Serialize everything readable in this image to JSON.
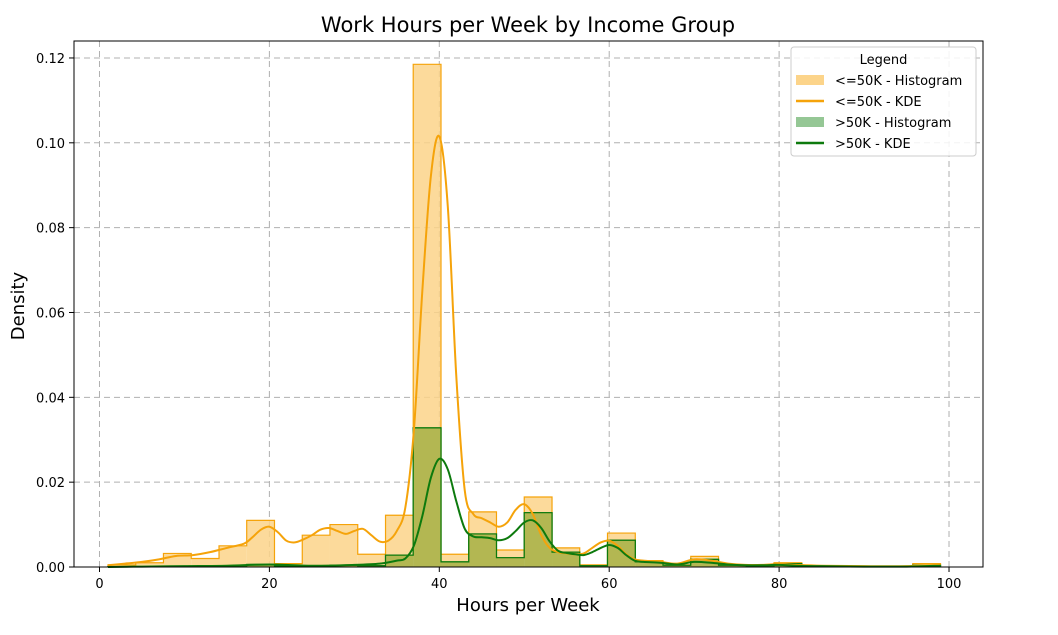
{
  "chart_data": {
    "type": "histogram+kde",
    "title": "Work Hours per Week by Income Group",
    "xlabel": "Hours per Week",
    "ylabel": "Density",
    "xlim": [
      -3,
      104
    ],
    "ylim": [
      0,
      0.124
    ],
    "xticks": [
      0,
      20,
      40,
      60,
      80,
      100
    ],
    "yticks": [
      0.0,
      0.02,
      0.04,
      0.06,
      0.08,
      0.1,
      0.12
    ],
    "ytick_labels": [
      "0.00",
      "0.02",
      "0.04",
      "0.06",
      "0.08",
      "0.10",
      "0.12"
    ],
    "grid": true,
    "bin_edges": [
      1,
      4.27,
      7.53,
      10.8,
      14.07,
      17.33,
      20.6,
      23.87,
      27.13,
      30.4,
      33.67,
      36.93,
      40.2,
      43.47,
      46.73,
      50.0,
      53.27,
      56.53,
      59.8,
      63.07,
      66.33,
      69.6,
      72.87,
      76.13,
      79.4,
      82.67,
      85.93,
      89.2,
      92.47,
      95.73,
      99.0
    ],
    "legend": {
      "title": "Legend",
      "position": "top-right",
      "entries": [
        {
          "label": "<=50K - Histogram",
          "kind": "patch",
          "color": "#fcd48a"
        },
        {
          "label": "<=50K - KDE",
          "kind": "line",
          "color": "#f5a30a"
        },
        {
          "label": ">50K - Histogram",
          "kind": "patch",
          "color": "#95c795"
        },
        {
          "label": ">50K - KDE",
          "kind": "line",
          "color": "#0d7a0d"
        }
      ]
    },
    "series": [
      {
        "name": "<=50K - Histogram",
        "kind": "histogram",
        "fill": "#fcd48a",
        "edge": "#f5a30a",
        "values": [
          0.0005,
          0.001,
          0.0032,
          0.002,
          0.005,
          0.011,
          0.0008,
          0.0075,
          0.01,
          0.003,
          0.0122,
          0.1185,
          0.003,
          0.013,
          0.004,
          0.0165,
          0.0045,
          0.0005,
          0.008,
          0.0015,
          0.0005,
          0.0025,
          0.0005,
          0.0003,
          0.001,
          0.0003,
          0.0002,
          0.0002,
          0.0002,
          0.0008
        ]
      },
      {
        "name": ">50K - Histogram",
        "kind": "histogram",
        "fill": "#95c795",
        "edge": "#0d7a0d",
        "values": [
          0.0001,
          0.0001,
          0.0002,
          0.0002,
          0.0003,
          0.0006,
          0.0002,
          0.0003,
          0.0004,
          0.0003,
          0.0028,
          0.0328,
          0.0012,
          0.0078,
          0.0022,
          0.0128,
          0.0035,
          0.0003,
          0.0063,
          0.0012,
          0.0004,
          0.0018,
          0.0004,
          0.0003,
          0.0008,
          0.0002,
          0.0001,
          0.0001,
          0.0001,
          0.0004
        ]
      },
      {
        "name": "<=50K - KDE",
        "kind": "line",
        "color": "#f5a30a",
        "x": [
          1,
          3,
          5,
          7,
          9,
          11,
          13,
          15,
          17,
          18,
          19,
          20,
          21,
          22,
          23,
          24,
          25,
          26,
          27,
          28,
          29,
          30,
          31,
          32,
          33,
          34,
          35,
          36,
          37,
          38,
          39,
          40,
          41,
          42,
          43,
          44,
          45,
          46,
          47,
          48,
          49,
          50,
          51,
          52,
          53,
          54,
          55,
          56,
          57,
          58,
          59,
          60,
          61,
          62,
          63,
          64,
          66,
          68,
          70,
          72,
          74,
          76,
          78,
          80,
          82,
          85,
          90,
          95,
          99
        ],
        "y": [
          0.0004,
          0.0008,
          0.0012,
          0.0018,
          0.0026,
          0.0028,
          0.0035,
          0.0045,
          0.0055,
          0.007,
          0.0088,
          0.0095,
          0.0082,
          0.0062,
          0.0058,
          0.0065,
          0.0075,
          0.0088,
          0.0092,
          0.0085,
          0.0078,
          0.0085,
          0.009,
          0.0075,
          0.006,
          0.0062,
          0.0085,
          0.014,
          0.032,
          0.065,
          0.092,
          0.1015,
          0.085,
          0.045,
          0.018,
          0.0125,
          0.0115,
          0.0105,
          0.0095,
          0.0105,
          0.0135,
          0.0148,
          0.0125,
          0.0075,
          0.0045,
          0.0035,
          0.0032,
          0.003,
          0.0032,
          0.0045,
          0.0058,
          0.0062,
          0.005,
          0.003,
          0.0018,
          0.0015,
          0.0012,
          0.0008,
          0.0018,
          0.0015,
          0.0008,
          0.0005,
          0.0005,
          0.0007,
          0.0005,
          0.0003,
          0.0002,
          0.0002,
          0.0005
        ]
      },
      {
        "name": ">50K - KDE",
        "kind": "line",
        "color": "#0d7a0d",
        "x": [
          1,
          5,
          10,
          15,
          20,
          25,
          30,
          33,
          35,
          36,
          37,
          38,
          39,
          40,
          41,
          42,
          43,
          44,
          45,
          46,
          47,
          48,
          49,
          50,
          51,
          52,
          53,
          54,
          55,
          56,
          57,
          58,
          59,
          60,
          61,
          62,
          63,
          64,
          66,
          68,
          70,
          72,
          74,
          76,
          78,
          80,
          82,
          85,
          90,
          95,
          99
        ],
        "y": [
          0.0,
          0.0001,
          0.0002,
          0.0003,
          0.0006,
          0.0003,
          0.0005,
          0.0008,
          0.0015,
          0.002,
          0.005,
          0.012,
          0.021,
          0.0255,
          0.023,
          0.0155,
          0.009,
          0.0072,
          0.007,
          0.0068,
          0.0063,
          0.0068,
          0.0085,
          0.0105,
          0.011,
          0.0092,
          0.006,
          0.0038,
          0.0033,
          0.003,
          0.0028,
          0.0035,
          0.0045,
          0.0052,
          0.0045,
          0.0028,
          0.0015,
          0.0012,
          0.001,
          0.0006,
          0.0012,
          0.001,
          0.0006,
          0.0004,
          0.0004,
          0.0005,
          0.0003,
          0.0002,
          0.0001,
          0.0001,
          0.0003
        ]
      }
    ]
  }
}
